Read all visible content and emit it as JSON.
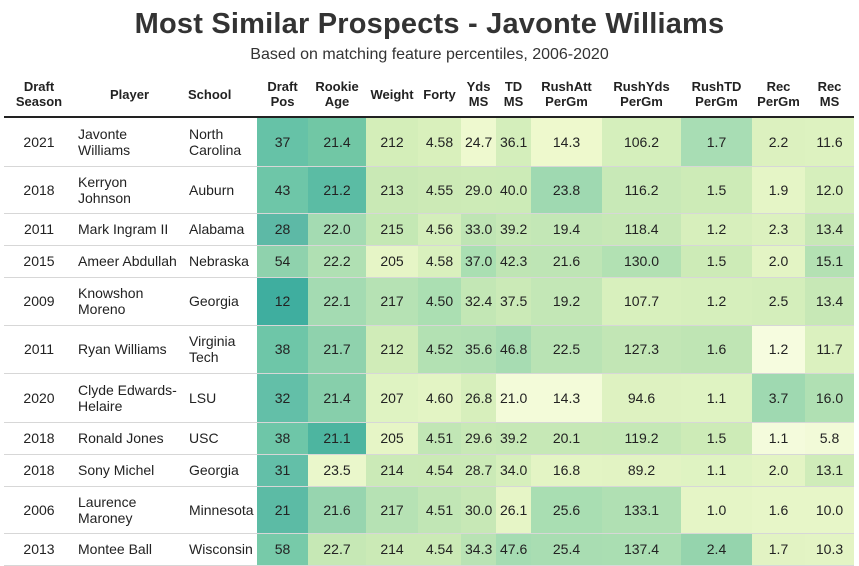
{
  "title": "Most Similar Prospects - Javonte Williams",
  "subtitle": "Based on matching feature percentiles, 2006-2020",
  "chart_data": {
    "type": "table",
    "columns": [
      {
        "key": "draft_season",
        "label": "Draft Season"
      },
      {
        "key": "player",
        "label": "Player"
      },
      {
        "key": "school",
        "label": "School"
      },
      {
        "key": "draft_pos",
        "label": "Draft Pos"
      },
      {
        "key": "rookie_age",
        "label": "Rookie Age"
      },
      {
        "key": "weight",
        "label": "Weight"
      },
      {
        "key": "forty",
        "label": "Forty"
      },
      {
        "key": "yds_ms",
        "label": "Yds MS"
      },
      {
        "key": "td_ms",
        "label": "TD MS"
      },
      {
        "key": "rushatt_pergm",
        "label": "RushAtt PerGm"
      },
      {
        "key": "rushyds_pergm",
        "label": "RushYds PerGm"
      },
      {
        "key": "rushtd_pergm",
        "label": "RushTD PerGm"
      },
      {
        "key": "rec_pergm",
        "label": "Rec PerGm"
      },
      {
        "key": "rec_ms",
        "label": "Rec MS"
      }
    ],
    "rows": [
      [
        "2021",
        "Javonte Williams",
        "North Carolina",
        "37",
        "21.4",
        "212",
        "4.58",
        "24.7",
        "36.1",
        "14.3",
        "106.2",
        "1.7",
        "2.2",
        "11.6"
      ],
      [
        "2018",
        "Kerryon Johnson",
        "Auburn",
        "43",
        "21.2",
        "213",
        "4.55",
        "29.0",
        "40.0",
        "23.8",
        "116.2",
        "1.5",
        "1.9",
        "12.0"
      ],
      [
        "2011",
        "Mark Ingram II",
        "Alabama",
        "28",
        "22.0",
        "215",
        "4.56",
        "33.0",
        "39.2",
        "19.4",
        "118.4",
        "1.2",
        "2.3",
        "13.4"
      ],
      [
        "2015",
        "Ameer Abdullah",
        "Nebraska",
        "54",
        "22.2",
        "205",
        "4.58",
        "37.0",
        "42.3",
        "21.6",
        "130.0",
        "1.5",
        "2.0",
        "15.1"
      ],
      [
        "2009",
        "Knowshon Moreno",
        "Georgia",
        "12",
        "22.1",
        "217",
        "4.50",
        "32.4",
        "37.5",
        "19.2",
        "107.7",
        "1.2",
        "2.5",
        "13.4"
      ],
      [
        "2011",
        "Ryan Williams",
        "Virginia Tech",
        "38",
        "21.7",
        "212",
        "4.52",
        "35.6",
        "46.8",
        "22.5",
        "127.3",
        "1.6",
        "1.2",
        "11.7"
      ],
      [
        "2020",
        "Clyde Edwards-Helaire",
        "LSU",
        "32",
        "21.4",
        "207",
        "4.60",
        "26.8",
        "21.0",
        "14.3",
        "94.6",
        "1.1",
        "3.7",
        "16.0"
      ],
      [
        "2018",
        "Ronald Jones",
        "USC",
        "38",
        "21.1",
        "205",
        "4.51",
        "29.6",
        "39.2",
        "20.1",
        "119.2",
        "1.5",
        "1.1",
        "5.8"
      ],
      [
        "2018",
        "Sony Michel",
        "Georgia",
        "31",
        "23.5",
        "214",
        "4.54",
        "28.7",
        "34.0",
        "16.8",
        "89.2",
        "1.1",
        "2.0",
        "13.1"
      ],
      [
        "2006",
        "Laurence Maroney",
        "Minnesota",
        "21",
        "21.6",
        "217",
        "4.51",
        "30.0",
        "26.1",
        "25.6",
        "133.1",
        "1.0",
        "1.6",
        "10.0"
      ],
      [
        "2013",
        "Montee Ball",
        "Wisconsin",
        "58",
        "22.7",
        "214",
        "4.54",
        "34.3",
        "47.6",
        "25.4",
        "137.4",
        "2.4",
        "1.7",
        "10.3"
      ]
    ],
    "cell_colors": [
      [
        "#ffffff",
        "#ffffff",
        "#ffffff",
        "#66c2a7",
        "#71c7a5",
        "#d4eeb9",
        "#d9f0bc",
        "#eef9cf",
        "#d4eebb",
        "#eef9cd",
        "#d5efbc",
        "#a8ddb4",
        "#dcf1bf",
        "#ddf2c0"
      ],
      [
        "#ffffff",
        "#ffffff",
        "#ffffff",
        "#6ec6a8",
        "#5bbca4",
        "#c9e9b5",
        "#cceab6",
        "#cdebb7",
        "#ccebb7",
        "#9fd9b1",
        "#c8e9b7",
        "#cdebb7",
        "#e5f5c6",
        "#d6efbc"
      ],
      [
        "#ffffff",
        "#ffffff",
        "#ffffff",
        "#5db9a6",
        "#a4dbb2",
        "#c4e8b4",
        "#d4eebb",
        "#bfe5b4",
        "#c6e8b6",
        "#c3e7b6",
        "#c7e8b6",
        "#d7efbc",
        "#dcf1bf",
        "#c7e8b6"
      ],
      [
        "#ffffff",
        "#ffffff",
        "#ffffff",
        "#8fd2ad",
        "#b0e0b3",
        "#e6f5c6",
        "#d9f0bd",
        "#aadfb2",
        "#bfe5b4",
        "#bee5b5",
        "#b2e1b3",
        "#cdebb7",
        "#e3f4c4",
        "#b4e1b3"
      ],
      [
        "#ffffff",
        "#ffffff",
        "#ffffff",
        "#3fae9f",
        "#a4dbb2",
        "#b6e2b4",
        "#abdfb2",
        "#c3e7b5",
        "#cbeab7",
        "#c3e7b6",
        "#d8f0bd",
        "#d6efbc",
        "#d4eebb",
        "#c7e8b6"
      ],
      [
        "#ffffff",
        "#ffffff",
        "#ffffff",
        "#6ec6a8",
        "#8fd2ad",
        "#d0ecb8",
        "#b3e1b3",
        "#b1e0b3",
        "#a7dcb2",
        "#b9e3b4",
        "#c2e6b5",
        "#bfe5b4",
        "#f6fcdf",
        "#dbf1bf"
      ],
      [
        "#ffffff",
        "#ffffff",
        "#ffffff",
        "#63bfa8",
        "#87cfab",
        "#dff3c2",
        "#e3f4c4",
        "#d7efbc",
        "#f3fbd9",
        "#f3fbd9",
        "#def2c1",
        "#dff3c2",
        "#9fd9b1",
        "#b0e0b3"
      ],
      [
        "#ffffff",
        "#ffffff",
        "#ffffff",
        "#6ec6a8",
        "#4db5a0",
        "#e6f5c6",
        "#c1e6b5",
        "#c8e9b6",
        "#c6e8b6",
        "#c6e8b6",
        "#c5e8b6",
        "#cdebb7",
        "#f4fbdc",
        "#f2fad8"
      ],
      [
        "#ffffff",
        "#ffffff",
        "#ffffff",
        "#63bfa8",
        "#eaf7cb",
        "#cbeab7",
        "#cbeab6",
        "#cbeab7",
        "#d6efbc",
        "#e3f4c4",
        "#e2f3c3",
        "#dff3c2",
        "#e3f4c4",
        "#cfecb9"
      ],
      [
        "#ffffff",
        "#ffffff",
        "#ffffff",
        "#5cbba5",
        "#97d5af",
        "#b6e2b4",
        "#c1e6b5",
        "#c7e8b6",
        "#e6f5c6",
        "#a9deb2",
        "#b0e0b3",
        "#e5f5c6",
        "#e7f6c8",
        "#e7f6c8"
      ],
      [
        "#ffffff",
        "#ffffff",
        "#ffffff",
        "#77caa9",
        "#c6e8b5",
        "#cbeab6",
        "#cbeab6",
        "#b9e3b4",
        "#a5dcb2",
        "#a9ddb2",
        "#aadeb2",
        "#95d4ad",
        "#e2f3c3",
        "#e3f4c4"
      ]
    ]
  }
}
